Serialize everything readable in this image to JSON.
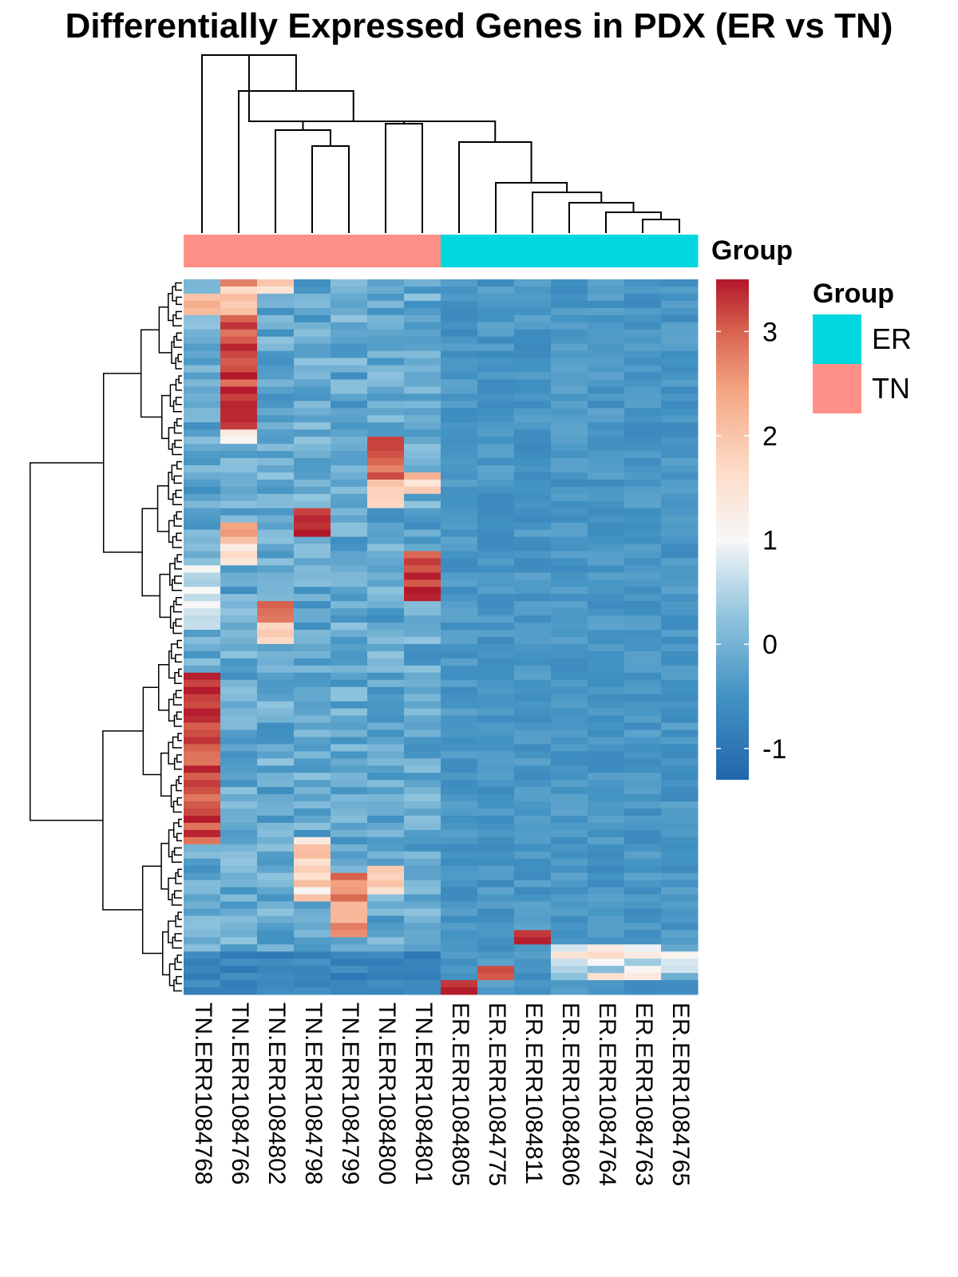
{
  "chart_data": {
    "type": "heatmap",
    "title": "Differentially Expressed Genes in PDX (ER vs TN)",
    "columns": [
      "TN.ERR1084768",
      "TN.ERR1084766",
      "TN.ERR1084802",
      "TN.ERR1084798",
      "TN.ERR1084799",
      "TN.ERR1084800",
      "TN.ERR1084801",
      "ER.ERR1084805",
      "ER.ERR1084775",
      "ER.ERR1084811",
      "ER.ERR1084806",
      "ER.ERR1084764",
      "ER.ERR1084763",
      "ER.ERR1084765"
    ],
    "column_groups": [
      "TN",
      "TN",
      "TN",
      "TN",
      "TN",
      "TN",
      "TN",
      "ER",
      "ER",
      "ER",
      "ER",
      "ER",
      "ER",
      "ER"
    ],
    "n_rows": 100,
    "annotation_label": "Group",
    "legend": {
      "title": "Group",
      "items": [
        {
          "label": "ER",
          "color": "#00d7df"
        },
        {
          "label": "TN",
          "color": "#ff9088"
        }
      ]
    },
    "color_scale": {
      "min": -1.3,
      "max": 3.5,
      "ticks": [
        "3",
        "2",
        "1",
        "0",
        "-1"
      ],
      "tick_values": [
        3,
        2,
        1,
        0,
        -1
      ],
      "low_color": "#2166ac",
      "mid_color": "#f7f7f7",
      "high_color": "#b2182b"
    },
    "row_dendrogram": true,
    "column_dendrogram": true,
    "note": "Row-scaled expression; TN samples show sample-specific high-expression blocks, ER samples are uniformly low except for a few rows at the bottom."
  }
}
